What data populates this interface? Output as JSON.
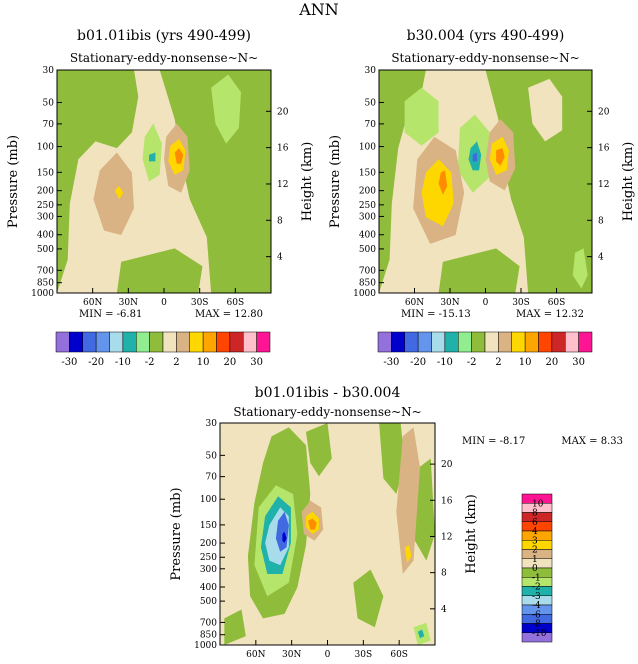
{
  "page_title": "ANN",
  "colors": {
    "tan": "#f2e3bf",
    "olive": "#8fbc3a",
    "lightgreen": "#b5e56b",
    "brown": "#d9b384",
    "yellow": "#ffd700",
    "orange": "#ff8c00",
    "teal": "#20b2aa",
    "lightblue": "#a8dcea",
    "blue": "#4169e1",
    "darkblue": "#0000cd"
  },
  "chart_data": [
    {
      "type": "heatmap",
      "title_left": "b01.01ibis (yrs 490-499)",
      "subtitle": "Stationary-eddy-nonsense~N~",
      "ylabel": "Pressure (mb)",
      "ylabel_right": "Height (km)",
      "x_ticks": [
        "60N",
        "30N",
        "0",
        "30S",
        "60S"
      ],
      "x_tick_values": [
        60,
        30,
        0,
        -30,
        -60
      ],
      "xlim": [
        90,
        -90
      ],
      "y_ticks": [
        "30",
        "50",
        "70",
        "100",
        "150",
        "200",
        "250",
        "300",
        "400",
        "500",
        "700",
        "850",
        "1000"
      ],
      "y_tick_values": [
        30,
        50,
        70,
        100,
        150,
        200,
        250,
        300,
        400,
        500,
        700,
        850,
        1000
      ],
      "ylim": [
        1000,
        30
      ],
      "y_scale": "log",
      "height_ticks": [
        "20",
        "16",
        "12",
        "8",
        "4"
      ],
      "height_tick_values": [
        20,
        16,
        12,
        8,
        4
      ],
      "min_label": "MIN = -6.81",
      "max_label": "MAX = 12.80"
    },
    {
      "type": "heatmap",
      "title_left": "b30.004 (yrs 490-499)",
      "subtitle": "Stationary-eddy-nonsense~N~",
      "ylabel": "Pressure (mb)",
      "ylabel_right": "Height (km)",
      "x_ticks": [
        "60N",
        "30N",
        "0",
        "30S",
        "60S"
      ],
      "x_tick_values": [
        60,
        30,
        0,
        -30,
        -60
      ],
      "xlim": [
        90,
        -90
      ],
      "y_ticks": [
        "30",
        "50",
        "70",
        "100",
        "150",
        "200",
        "250",
        "300",
        "400",
        "500",
        "700",
        "850",
        "1000"
      ],
      "y_tick_values": [
        30,
        50,
        70,
        100,
        150,
        200,
        250,
        300,
        400,
        500,
        700,
        850,
        1000
      ],
      "ylim": [
        1000,
        30
      ],
      "y_scale": "log",
      "height_ticks": [
        "20",
        "16",
        "12",
        "8",
        "4"
      ],
      "height_tick_values": [
        20,
        16,
        12,
        8,
        4
      ],
      "min_label": "MIN = -15.13",
      "max_label": "MAX = 12.32"
    },
    {
      "type": "heatmap",
      "title_left": "b01.01ibis - b30.004",
      "subtitle": "Stationary-eddy-nonsense~N~",
      "ylabel": "Pressure (mb)",
      "ylabel_right": "Height (km)",
      "x_ticks": [
        "60N",
        "30N",
        "0",
        "30S",
        "60S"
      ],
      "x_tick_values": [
        60,
        30,
        0,
        -30,
        -60
      ],
      "xlim": [
        90,
        -90
      ],
      "y_ticks": [
        "30",
        "50",
        "70",
        "100",
        "150",
        "200",
        "250",
        "300",
        "400",
        "500",
        "700",
        "850",
        "1000"
      ],
      "y_tick_values": [
        30,
        50,
        70,
        100,
        150,
        200,
        250,
        300,
        400,
        500,
        700,
        850,
        1000
      ],
      "ylim": [
        1000,
        30
      ],
      "y_scale": "log",
      "height_ticks": [
        "20",
        "16",
        "12",
        "8",
        "4"
      ],
      "height_tick_values": [
        20,
        16,
        12,
        8,
        4
      ],
      "min_label": "MIN = -8.17",
      "max_label": "MAX = 8.33"
    }
  ],
  "colorbar_top": {
    "orientation": "horizontal",
    "colors": [
      "#9370db",
      "#0000cd",
      "#4169e1",
      "#6495ed",
      "#a8dcea",
      "#20b2aa",
      "#90ee90",
      "#8fbc3a",
      "#f2e3bf",
      "#d9b384",
      "#ffd700",
      "#ffa500",
      "#ff4500",
      "#cd2626",
      "#ffc0cb",
      "#ff1493"
    ],
    "labels": [
      "-30",
      "-20",
      "-10",
      "-2",
      "2",
      "10",
      "20",
      "30"
    ]
  },
  "colorbar_diff": {
    "orientation": "vertical",
    "colors": [
      "#ff1493",
      "#ffc0cb",
      "#cd2626",
      "#ff4500",
      "#ffa500",
      "#ffd700",
      "#d9b384",
      "#f2e3bf",
      "#8fbc3a",
      "#b5e56b",
      "#20b2aa",
      "#a8dcea",
      "#6495ed",
      "#4169e1",
      "#0000cd",
      "#9370db"
    ],
    "labels": [
      "10",
      "8",
      "6",
      "4",
      "3",
      "2",
      "1",
      "0",
      "-1",
      "-2",
      "-3",
      "-4",
      "-6",
      "-8",
      "-10"
    ]
  }
}
